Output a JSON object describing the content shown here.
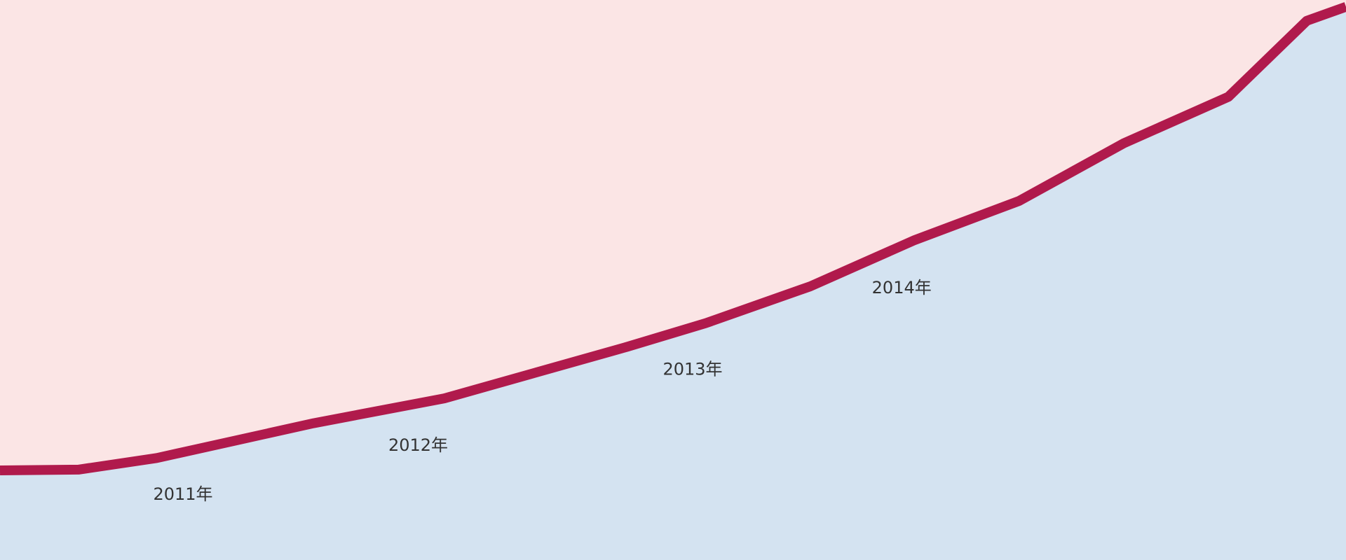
{
  "chart_data": {
    "type": "area",
    "colors": {
      "background": "#fbe5e5",
      "area_fill": "#d4e3f1",
      "line": "#b01a4c",
      "label_text": "#333333"
    },
    "x": [
      2010.3,
      2010.6,
      2010.9,
      2011.5,
      2012.0,
      2012.7,
      2013.0,
      2013.4,
      2013.8,
      2014.2,
      2014.6,
      2015.0,
      2015.3,
      2015.45
    ],
    "values": [
      224,
      226,
      255,
      342,
      404,
      533,
      592,
      684,
      800,
      898,
      1042,
      1158,
      1348,
      1383
    ],
    "ylim": [
      0,
      1400
    ],
    "xlim": [
      2010.3,
      2015.45
    ],
    "grid": false,
    "legend": "none",
    "year_labels": [
      {
        "x": 2011.0,
        "text": "2011年"
      },
      {
        "x": 2011.9,
        "text": "2012年"
      },
      {
        "x": 2012.95,
        "text": "2013年"
      },
      {
        "x": 2013.75,
        "text": "2014年"
      }
    ]
  }
}
